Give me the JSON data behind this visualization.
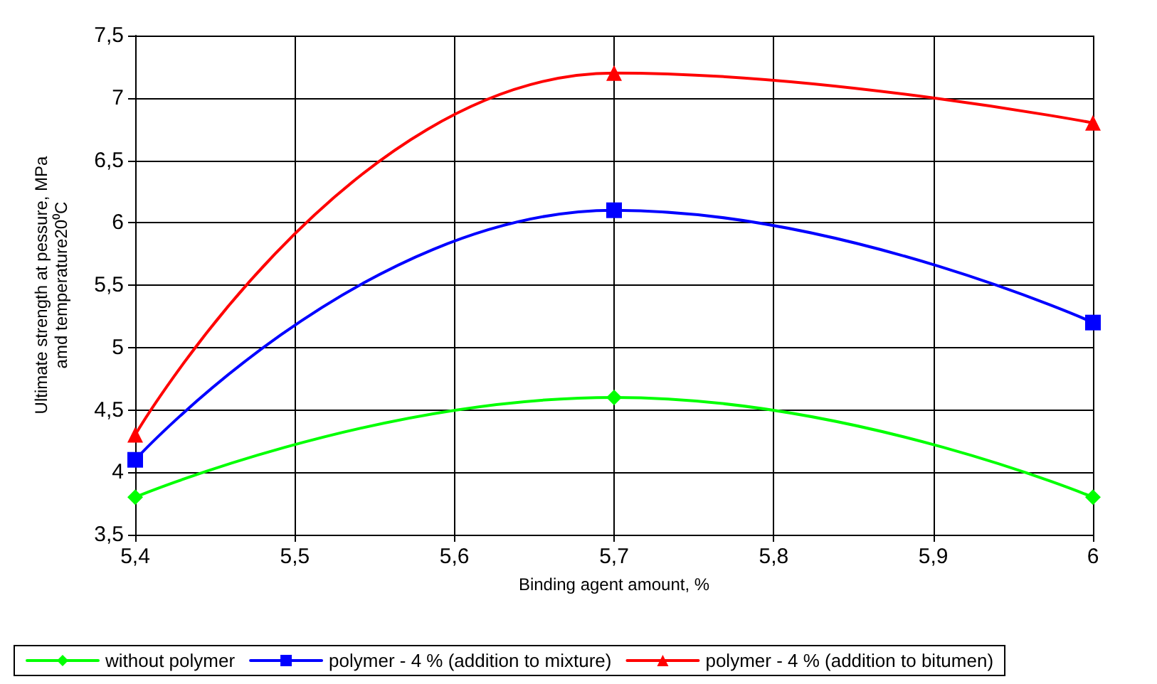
{
  "chart_data": {
    "type": "line",
    "xlabel": "Binding agent amount, %",
    "ylabel": "Ultimate strength at pessure, MPa\namd temperature20⁰C",
    "x": [
      5.4,
      5.7,
      6
    ],
    "series": [
      {
        "name": "without polymer",
        "color": "#00ff00",
        "marker": "diamond",
        "values": [
          3.8,
          4.6,
          3.8
        ]
      },
      {
        "name": "polymer - 4 % (addition to mixture)",
        "color": "#0000ff",
        "marker": "square",
        "values": [
          4.1,
          6.1,
          5.2
        ]
      },
      {
        "name": "polymer - 4 % (addition to bitumen)",
        "color": "#ff0000",
        "marker": "triangle",
        "values": [
          4.3,
          7.2,
          6.8
        ]
      }
    ],
    "xlim": [
      5.4,
      6
    ],
    "xticks": [
      {
        "value": 5.4,
        "label": "5,4"
      },
      {
        "value": 5.5,
        "label": "5,5"
      },
      {
        "value": 5.6,
        "label": "5,6"
      },
      {
        "value": 5.7,
        "label": "5,7"
      },
      {
        "value": 5.8,
        "label": "5,8"
      },
      {
        "value": 5.9,
        "label": "5,9"
      },
      6
    ],
    "ylim": [
      3.5,
      7.5
    ],
    "yticks": [
      {
        "value": 3.5,
        "label": "3,5"
      },
      4,
      {
        "value": 4.5,
        "label": "4,5"
      },
      5,
      {
        "value": 5.5,
        "label": "5,5"
      },
      6,
      {
        "value": 6.5,
        "label": "6,5"
      },
      7,
      {
        "value": 7.5,
        "label": "7,5"
      }
    ],
    "grid": true,
    "legend": "bottom",
    "line_style": "solid"
  }
}
